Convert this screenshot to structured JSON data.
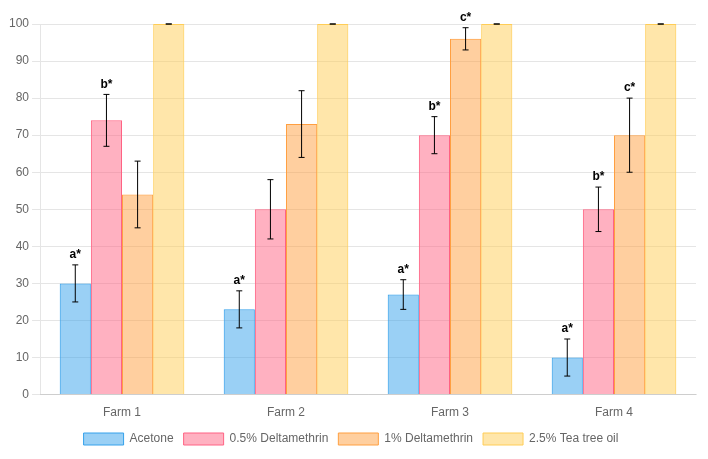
{
  "chart_data": {
    "type": "bar",
    "categories": [
      "Farm 1",
      "Farm 2",
      "Farm 3",
      "Farm 4"
    ],
    "series": [
      {
        "name": "Acetone",
        "values": [
          30,
          23,
          27,
          10
        ],
        "errors": [
          5,
          5,
          4,
          5
        ],
        "annotations": [
          "a*",
          "a*",
          "a*",
          "a*"
        ]
      },
      {
        "name": "0.5% Deltamethrin",
        "values": [
          74,
          50,
          70,
          50
        ],
        "errors": [
          7,
          8,
          5,
          6
        ],
        "annotations": [
          "b*",
          null,
          "b*",
          "b*"
        ]
      },
      {
        "name": "1% Deltamethrin",
        "values": [
          54,
          73,
          96,
          70
        ],
        "errors": [
          9,
          9,
          3,
          10
        ],
        "annotations": [
          null,
          null,
          "c*",
          "c*"
        ]
      },
      {
        "name": "2.5% Tea tree oil",
        "values": [
          100,
          100,
          100,
          100
        ],
        "errors": [
          0,
          0,
          0,
          0
        ],
        "annotations": [
          null,
          null,
          null,
          null
        ]
      }
    ],
    "ylim": [
      0,
      100
    ],
    "yticks": [
      0,
      10,
      20,
      30,
      40,
      50,
      60,
      70,
      80,
      90,
      100
    ],
    "grid": "y",
    "legend": "bottom"
  }
}
